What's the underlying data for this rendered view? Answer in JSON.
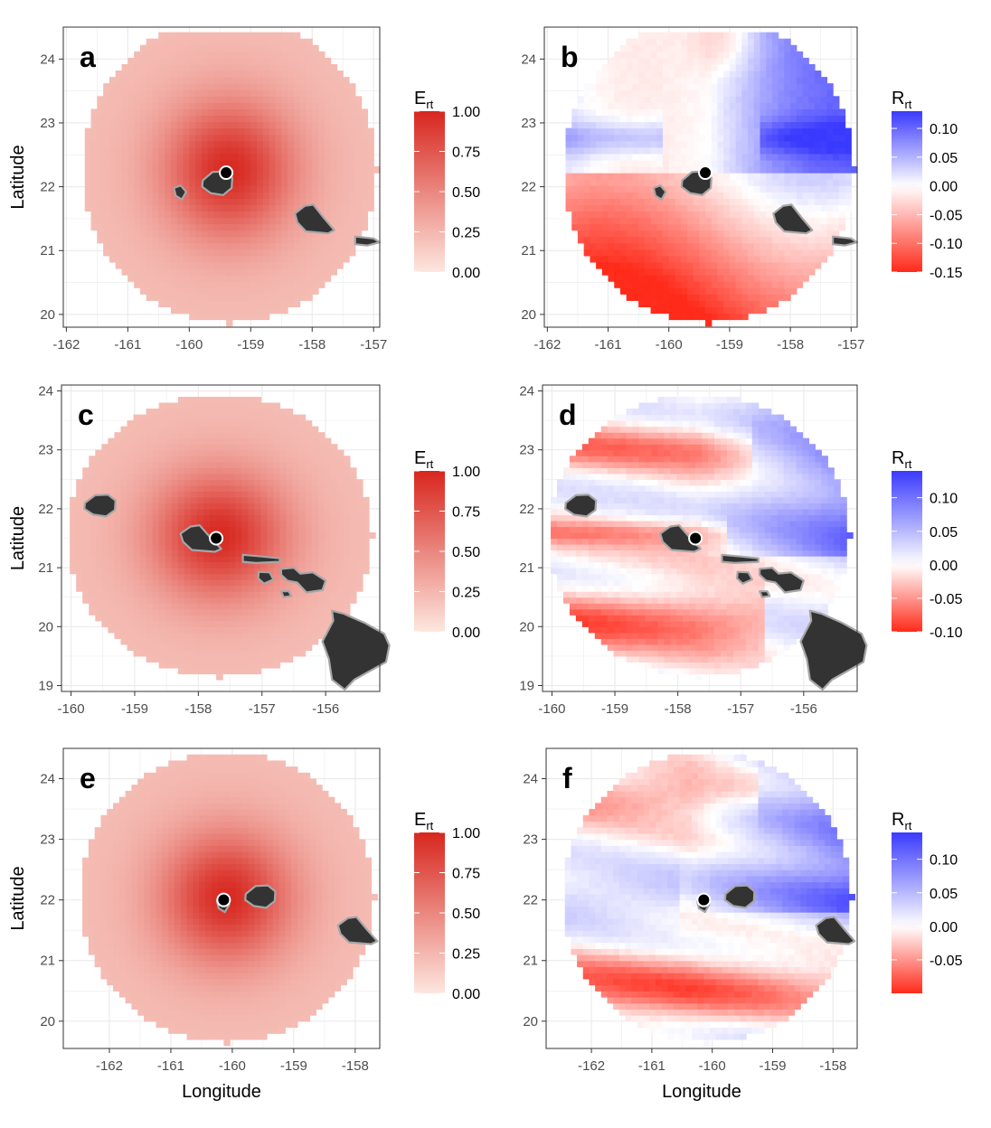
{
  "figure": {
    "title": ""
  },
  "legend_titles": {
    "E": "E",
    "E_sub": "rt",
    "R": "R",
    "R_sub": "rt"
  },
  "colors": {
    "panel_border": "#333333",
    "grid": "#ebebeb",
    "tick_text": "#4d4d4d",
    "land": "#333333",
    "land_outline": "#a6a6a6",
    "low": "#fde7df",
    "high": "#d7261e",
    "negative": "#ff2a1a",
    "zero": "#ffffff",
    "positive": "#3a3aff",
    "marker": "#000000"
  },
  "chart_data": [
    {
      "panel": "a",
      "type": "heatmap",
      "variable": "E",
      "xlabel": "",
      "ylabel": "Latitude",
      "x_ticks": [
        "-162",
        "-161",
        "-160",
        "-159",
        "-158",
        "-157"
      ],
      "x_tick_values": [
        -162,
        -161,
        -160,
        -159,
        -158,
        -157
      ],
      "y_ticks": [
        "20",
        "21",
        "22",
        "23",
        "24"
      ],
      "y_tick_values": [
        20,
        21,
        22,
        23,
        24
      ],
      "xlim": [
        -162.05,
        -156.9
      ],
      "ylim": [
        19.8,
        24.5
      ],
      "center": [
        -159.4,
        22.22
      ],
      "radius_deg": 2.4,
      "land_polygons": [
        "kauai",
        "niihau",
        "oahu",
        "molokai_edge"
      ],
      "legend": {
        "title": "E",
        "subscript": "rt",
        "ticks": [
          "1.00",
          "0.75",
          "0.50",
          "0.25",
          "0.00"
        ],
        "range": [
          0,
          1
        ]
      },
      "grid": true
    },
    {
      "panel": "b",
      "type": "heatmap",
      "variable": "R",
      "xlabel": "",
      "ylabel": "",
      "x_ticks": [
        "-162",
        "-161",
        "-160",
        "-159",
        "-158",
        "-157"
      ],
      "x_tick_values": [
        -162,
        -161,
        -160,
        -159,
        -158,
        -157
      ],
      "y_ticks": [
        "20",
        "21",
        "22",
        "23",
        "24"
      ],
      "y_tick_values": [
        20,
        21,
        22,
        23,
        24
      ],
      "xlim": [
        -162.05,
        -156.9
      ],
      "ylim": [
        19.8,
        24.5
      ],
      "center": [
        -159.4,
        22.22
      ],
      "radius_deg": 2.4,
      "land_polygons": [
        "kauai",
        "niihau",
        "oahu",
        "molokai_edge"
      ],
      "legend": {
        "title": "R",
        "subscript": "rt",
        "ticks": [
          "0.10",
          "0.05",
          "0.00",
          "-0.05",
          "-0.10",
          "-0.15"
        ],
        "range": [
          -0.15,
          0.13
        ]
      },
      "grid": true
    },
    {
      "panel": "c",
      "type": "heatmap",
      "variable": "E",
      "xlabel": "",
      "ylabel": "Latitude",
      "x_ticks": [
        "-160",
        "-159",
        "-158",
        "-157",
        "-156"
      ],
      "x_tick_values": [
        -160,
        -159,
        -158,
        -157,
        -156
      ],
      "y_ticks": [
        "19",
        "20",
        "21",
        "22",
        "23",
        "24"
      ],
      "y_tick_values": [
        19,
        20,
        21,
        22,
        23,
        24
      ],
      "xlim": [
        -160.15,
        -155.15
      ],
      "ylim": [
        18.9,
        24.1
      ],
      "center": [
        -157.72,
        21.5
      ],
      "radius_deg": 2.4,
      "land_polygons": [
        "kauai",
        "oahu",
        "molokai",
        "maui",
        "lanai",
        "kahoolawe",
        "hawaii"
      ],
      "legend": {
        "title": "E",
        "subscript": "rt",
        "ticks": [
          "1.00",
          "0.75",
          "0.50",
          "0.25",
          "0.00"
        ],
        "range": [
          0,
          1
        ]
      },
      "grid": true
    },
    {
      "panel": "d",
      "type": "heatmap",
      "variable": "R",
      "xlabel": "",
      "ylabel": "",
      "x_ticks": [
        "-160",
        "-159",
        "-158",
        "-157",
        "-156"
      ],
      "x_tick_values": [
        -160,
        -159,
        -158,
        -157,
        -156
      ],
      "y_ticks": [
        "19",
        "20",
        "21",
        "22",
        "23",
        "24"
      ],
      "y_tick_values": [
        19,
        20,
        21,
        22,
        23,
        24
      ],
      "xlim": [
        -160.15,
        -155.15
      ],
      "ylim": [
        18.9,
        24.1
      ],
      "center": [
        -157.72,
        21.5
      ],
      "radius_deg": 2.4,
      "land_polygons": [
        "kauai",
        "oahu",
        "molokai",
        "maui",
        "lanai",
        "kahoolawe",
        "hawaii"
      ],
      "legend": {
        "title": "R",
        "subscript": "rt",
        "ticks": [
          "0.10",
          "0.05",
          "0.00",
          "-0.05",
          "-0.10"
        ],
        "range": [
          -0.1,
          0.14
        ]
      },
      "grid": true
    },
    {
      "panel": "e",
      "type": "heatmap",
      "variable": "E",
      "xlabel": "Longitude",
      "ylabel": "Latitude",
      "x_ticks": [
        "-162",
        "-161",
        "-160",
        "-159",
        "-158"
      ],
      "x_tick_values": [
        -162,
        -161,
        -160,
        -159,
        -158
      ],
      "y_ticks": [
        "20",
        "21",
        "22",
        "23",
        "24"
      ],
      "y_tick_values": [
        20,
        21,
        22,
        23,
        24
      ],
      "xlim": [
        -162.75,
        -157.6
      ],
      "ylim": [
        19.55,
        24.5
      ],
      "center": [
        -160.14,
        22.0
      ],
      "radius_deg": 2.4,
      "land_polygons": [
        "kauai",
        "niihau",
        "oahu"
      ],
      "legend": {
        "title": "E",
        "subscript": "rt",
        "ticks": [
          "1.00",
          "0.75",
          "0.50",
          "0.25",
          "0.00"
        ],
        "range": [
          0,
          1
        ]
      },
      "grid": true
    },
    {
      "panel": "f",
      "type": "heatmap",
      "variable": "R",
      "xlabel": "Longitude",
      "ylabel": "",
      "x_ticks": [
        "-162",
        "-161",
        "-160",
        "-159",
        "-158"
      ],
      "x_tick_values": [
        -162,
        -161,
        -160,
        -159,
        -158
      ],
      "y_ticks": [
        "20",
        "21",
        "22",
        "23",
        "24"
      ],
      "y_tick_values": [
        20,
        21,
        22,
        23,
        24
      ],
      "xlim": [
        -162.75,
        -157.6
      ],
      "ylim": [
        19.55,
        24.5
      ],
      "center": [
        -160.14,
        22.0
      ],
      "radius_deg": 2.4,
      "land_polygons": [
        "kauai",
        "niihau",
        "oahu"
      ],
      "legend": {
        "title": "R",
        "subscript": "rt",
        "ticks": [
          "0.10",
          "0.05",
          "0.00",
          "-0.05"
        ],
        "range": [
          -0.1,
          0.14
        ]
      },
      "grid": true
    }
  ]
}
